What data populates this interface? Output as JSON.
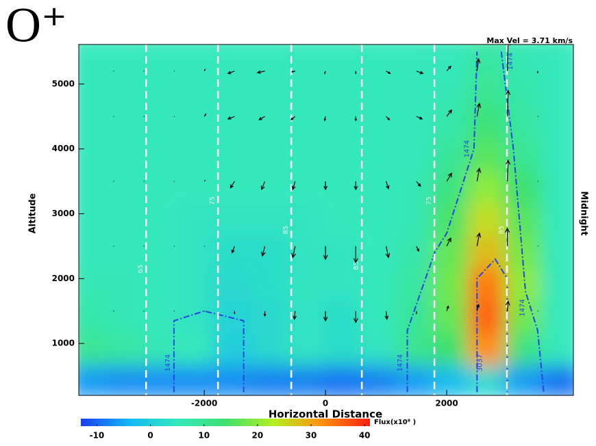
{
  "chart_data": {
    "type": "contour",
    "title": "O⁺",
    "annotation": "Max Vel = 3.71 km/s",
    "xlabel": "Horizontal Distance",
    "ylabel": "Altitude",
    "right_label": "Midnight",
    "xlim": [
      -4070,
      4090
    ],
    "ylim": [
      200,
      5610
    ],
    "xticks": [
      -2000,
      0,
      2000
    ],
    "yticks": [
      1000,
      2000,
      3000,
      4000,
      5000
    ],
    "colorbar": {
      "label": "Flux(x10⁸ )",
      "lim": [
        -13,
        41
      ],
      "ticks": [
        -10,
        0,
        10,
        20,
        30,
        40
      ],
      "colormap": [
        "#1a3cf0",
        "#12b8f4",
        "#34e8bc",
        "#3ee070",
        "#b4f020",
        "#ff9010",
        "#ff2010"
      ]
    },
    "flux": {
      "x": [
        -3900,
        -3300,
        -2700,
        -2100,
        -1500,
        -900,
        -300,
        300,
        900,
        1500,
        2100,
        2700,
        3300,
        3900
      ],
      "y": [
        450,
        950,
        1450,
        1950,
        2450,
        2950,
        3450,
        3950,
        4450,
        4950,
        5450
      ],
      "values": [
        [
          -6,
          -7,
          -7,
          -7,
          -7,
          -8,
          -8,
          -9,
          -8,
          -6,
          -3,
          2,
          -6,
          -9
        ],
        [
          10,
          8,
          6,
          5,
          0,
          2,
          4,
          3,
          4,
          10,
          14,
          32,
          12,
          5
        ],
        [
          7,
          6,
          5,
          4,
          1,
          2,
          4,
          3,
          5,
          9,
          17,
          36,
          18,
          5
        ],
        [
          6,
          6,
          5,
          4,
          2,
          3,
          4,
          4,
          5,
          8,
          18,
          34,
          20,
          5
        ],
        [
          5,
          5,
          5,
          4,
          3,
          3,
          4,
          4,
          5,
          7,
          17,
          28,
          18,
          5
        ],
        [
          5,
          5,
          5,
          4,
          4,
          4,
          4,
          5,
          5,
          6,
          15,
          25,
          16,
          5
        ],
        [
          5,
          5,
          5,
          5,
          5,
          5,
          5,
          5,
          5,
          6,
          12,
          20,
          14,
          5
        ],
        [
          5,
          5,
          5,
          5,
          5,
          5,
          5,
          5,
          5,
          5,
          9,
          16,
          10,
          5
        ],
        [
          5,
          5,
          5,
          5,
          5,
          5,
          5,
          5,
          5,
          5,
          7,
          13,
          8,
          5
        ],
        [
          5,
          5,
          5,
          5,
          5,
          5,
          5,
          5,
          5,
          5,
          6,
          10,
          7,
          5
        ],
        [
          5,
          5,
          5,
          5,
          5,
          5,
          5,
          5,
          5,
          5,
          5,
          8,
          6,
          5
        ]
      ]
    },
    "vlines": {
      "x": [
        -2960,
        -1774,
        -565,
        599,
        1797,
        2994
      ],
      "labels": [
        "65",
        "75",
        "85",
        "85",
        "75",
        "85"
      ],
      "label_y": [
        2150,
        3200,
        2750,
        2200,
        3200,
        2750
      ],
      "color": "#ffffff"
    },
    "contours": [
      {
        "x": [
          -2500,
          -2500,
          -2000,
          -1350,
          -1350
        ],
        "y": [
          250,
          1350,
          1500,
          1350,
          250
        ]
      },
      {
        "x": [
          1350,
          1350,
          1800,
          2000,
          2450,
          2500
        ],
        "y": [
          250,
          1200,
          2400,
          2700,
          4000,
          5500
        ]
      },
      {
        "x": [
          2900,
          3100,
          3300,
          3500,
          3600
        ],
        "y": [
          5500,
          4000,
          1800,
          1200,
          250
        ]
      },
      {
        "x": [
          2500,
          2500,
          2800,
          3000,
          3000
        ],
        "y": [
          250,
          2000,
          2300,
          2000,
          250
        ]
      }
    ],
    "contour_color": "#2446e0",
    "contour_labels": [
      {
        "text": "1474",
        "x": -2600,
        "y": 700
      },
      {
        "text": "1474",
        "x": 1230,
        "y": 700
      },
      {
        "text": "1474",
        "x": 2330,
        "y": 4000
      },
      {
        "text": "1474",
        "x": 3050,
        "y": 5350
      },
      {
        "text": "1474",
        "x": 3250,
        "y": 1550
      },
      {
        "text": "3037",
        "x": 2550,
        "y": 700
      }
    ],
    "vectors": {
      "max": 3.71,
      "x": [
        -3500,
        -3000,
        -2500,
        -2000,
        -1500,
        -1000,
        -500,
        0,
        500,
        1000,
        1500,
        2000,
        2500,
        3000,
        3500
      ],
      "y": [
        1500,
        2500,
        3500,
        4500,
        5200
      ],
      "u": [
        [
          0,
          0,
          0,
          0,
          0,
          0,
          -0.1,
          0,
          0,
          0.1,
          0,
          0.2,
          0.2,
          0.1,
          0
        ],
        [
          0,
          0,
          0,
          0.1,
          -0.3,
          -0.3,
          -0.3,
          0,
          0,
          0.3,
          0.3,
          0.5,
          0.3,
          0,
          0
        ],
        [
          0,
          0,
          0,
          0.1,
          -0.5,
          -0.4,
          -0.3,
          0,
          0,
          0.3,
          0.5,
          0.6,
          0.3,
          0.1,
          0
        ],
        [
          0,
          0,
          0,
          0.2,
          -0.8,
          -0.7,
          -0.5,
          -0.1,
          0,
          0.4,
          0.7,
          0.6,
          0.3,
          0.1,
          0
        ],
        [
          0,
          0,
          0,
          0.1,
          -0.8,
          -0.9,
          -0.4,
          -0.1,
          0,
          0.5,
          0.8,
          0.5,
          0.2,
          0.1,
          0
        ]
      ],
      "v": [
        [
          0,
          0,
          0,
          0,
          -0.3,
          -0.6,
          -1.0,
          -1.2,
          -1.4,
          -1.0,
          -0.3,
          0.6,
          0.8,
          1.2,
          0
        ],
        [
          0,
          0,
          0,
          0,
          -0.8,
          -1.2,
          -1.4,
          -1.6,
          -2.0,
          -1.4,
          -0.6,
          1.0,
          1.6,
          2.2,
          0
        ],
        [
          0,
          0,
          0,
          0.1,
          -0.8,
          -1.0,
          -1.0,
          -1.0,
          -1.0,
          -0.9,
          -0.6,
          1.0,
          1.6,
          2.6,
          0
        ],
        [
          0,
          0,
          0,
          0.3,
          -0.3,
          -0.4,
          -0.4,
          -0.5,
          -0.5,
          -0.4,
          -0.3,
          0.8,
          1.6,
          3.2,
          0
        ],
        [
          0,
          0,
          0,
          0.2,
          -0.3,
          -0.2,
          -0.1,
          -0.3,
          -0.3,
          -0.3,
          -0.3,
          0.6,
          1.5,
          3.7,
          -0.2
        ]
      ]
    }
  }
}
